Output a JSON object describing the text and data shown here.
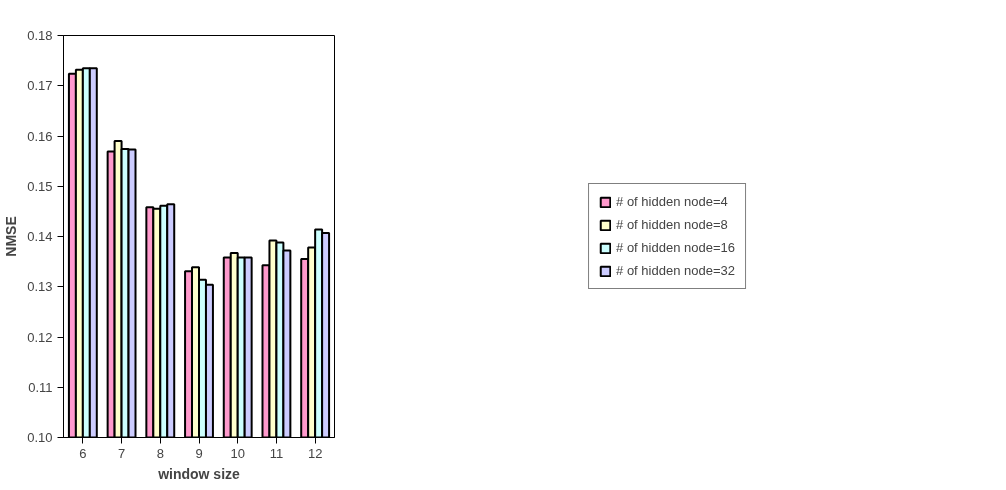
{
  "chart_data": {
    "type": "bar",
    "xlabel": "window size",
    "ylabel": "NMSE",
    "categories": [
      "6",
      "7",
      "8",
      "9",
      "10",
      "11",
      "12"
    ],
    "series": [
      {
        "name": "# of hidden node=4",
        "color": "#ff99cc",
        "values": [
          0.1724,
          0.1569,
          0.1458,
          0.1331,
          0.1358,
          0.1343,
          0.1355
        ]
      },
      {
        "name": "# of hidden node=8",
        "color": "#ffffcc",
        "values": [
          0.1732,
          0.159,
          0.1455,
          0.1339,
          0.1367,
          0.1392,
          0.1378
        ]
      },
      {
        "name": "# of hidden node=16",
        "color": "#ccffff",
        "values": [
          0.1735,
          0.1574,
          0.1461,
          0.1314,
          0.1358,
          0.1388,
          0.1414
        ]
      },
      {
        "name": "# of hidden node=32",
        "color": "#ccccff",
        "values": [
          0.1735,
          0.1573,
          0.1464,
          0.1304,
          0.1358,
          0.1372,
          0.1407
        ]
      }
    ],
    "ylim": [
      0.1,
      0.18
    ],
    "yticks": [
      {
        "value": 0.1,
        "label": "0.10"
      },
      {
        "value": 0.11,
        "label": "0.11"
      },
      {
        "value": 0.12,
        "label": "0.12"
      },
      {
        "value": 0.13,
        "label": "0.13"
      },
      {
        "value": 0.14,
        "label": "0.14"
      },
      {
        "value": 0.15,
        "label": "0.15"
      },
      {
        "value": 0.16,
        "label": "0.16"
      },
      {
        "value": 0.17,
        "label": "0.17"
      },
      {
        "value": 0.18,
        "label": "0.18"
      }
    ],
    "grid": false,
    "legend": "right"
  }
}
